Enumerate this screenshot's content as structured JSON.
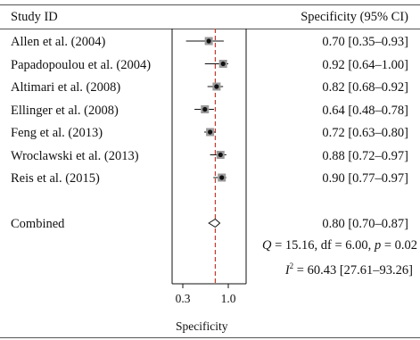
{
  "header": {
    "study_col": "Study ID",
    "stat_col": "Specificity (95% CI)"
  },
  "combined_label": "Combined",
  "stats": {
    "q_prefix": "Q",
    "q_text": " = 15.16, df = 6.00, ",
    "p_prefix": "p",
    "p_text": " = 0.02",
    "i2_prefix": "I",
    "i2_sup": "2",
    "i2_text": " = 60.43 [27.61–93.26]"
  },
  "chart_data": {
    "type": "forest",
    "xlabel": "Specificity",
    "xticks": [
      {
        "value": 0.3,
        "label": "0.3"
      },
      {
        "value": 1.0,
        "label": "1.0"
      }
    ],
    "xlim": [
      0.05,
      1.2
    ],
    "reference_line": 0.8,
    "studies": [
      {
        "name": "Allen et al. (2004)",
        "estimate": 0.7,
        "low": 0.35,
        "high": 0.93,
        "ci_text": "0.70 [0.35–0.93]"
      },
      {
        "name": "Papadopoulou et al. (2004)",
        "estimate": 0.92,
        "low": 0.64,
        "high": 1.0,
        "ci_text": "0.92 [0.64–1.00]"
      },
      {
        "name": "Altimari et al. (2008)",
        "estimate": 0.82,
        "low": 0.68,
        "high": 0.92,
        "ci_text": "0.82 [0.68–0.92]"
      },
      {
        "name": "Ellinger et al. (2008)",
        "estimate": 0.64,
        "low": 0.48,
        "high": 0.78,
        "ci_text": "0.64 [0.48–0.78]"
      },
      {
        "name": "Feng et al. (2013)",
        "estimate": 0.72,
        "low": 0.63,
        "high": 0.8,
        "ci_text": "0.72 [0.63–0.80]"
      },
      {
        "name": "Wroclawski et al. (2013)",
        "estimate": 0.88,
        "low": 0.72,
        "high": 0.97,
        "ci_text": "0.88 [0.72–0.97]"
      },
      {
        "name": "Reis et al. (2015)",
        "estimate": 0.9,
        "low": 0.77,
        "high": 0.97,
        "ci_text": "0.90 [0.77–0.97]"
      }
    ],
    "combined": {
      "estimate": 0.8,
      "low": 0.7,
      "high": 0.87,
      "ci_text": "0.80 [0.70–0.87]"
    },
    "colors": {
      "reference": "#c0392b",
      "square": "#9a9a9a",
      "point": "#111111"
    }
  }
}
